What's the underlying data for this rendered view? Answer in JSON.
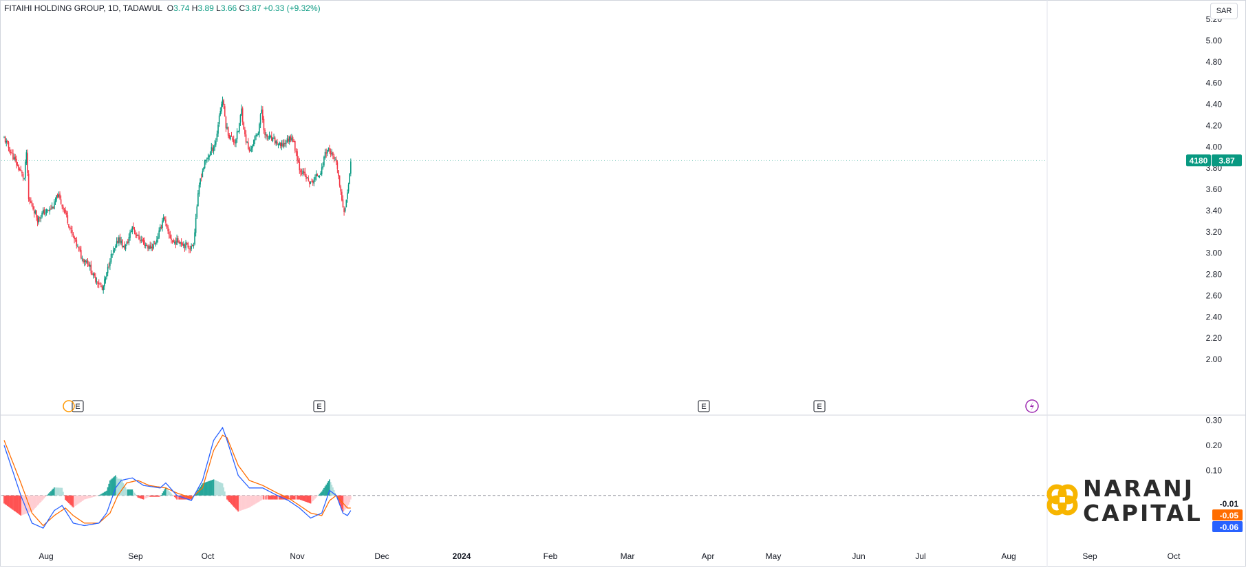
{
  "header": {
    "symbol": "FITAIHI HOLDING GROUP, 1D, TADAWUL",
    "o_label": "O",
    "o_value": "3.74",
    "h_label": "H",
    "h_value": "3.89",
    "l_label": "L",
    "l_value": "3.66",
    "c_label": "C",
    "c_value": "3.87",
    "change": "+0.33 (+9.32%)"
  },
  "currency": "SAR",
  "price_tag": {
    "ticker": "4180",
    "price": "3.87"
  },
  "macd_tags": {
    "hist": "-0.01",
    "signal": "-0.05",
    "macd": "-0.06"
  },
  "logo": {
    "line1": "NARANJ",
    "line2": "CAPITAL"
  },
  "event_markers": [
    "E",
    "E",
    "E",
    "E"
  ],
  "colors": {
    "up": "#089981",
    "down": "#f23645",
    "macd": "#2962ff",
    "signal": "#ff6d00",
    "hist_up": "#26a69a",
    "hist_up_light": "#b2dfdb",
    "hist_down": "#ff5252",
    "hist_down_light": "#ffcdd2",
    "logo_accent": "#f7b500"
  },
  "chart_data": [
    {
      "type": "candlestick",
      "ylabel": "SAR",
      "ylim": [
        2.0,
        5.2
      ],
      "y_ticks": [
        "2.00",
        "2.20",
        "2.40",
        "2.60",
        "2.80",
        "3.00",
        "3.20",
        "3.40",
        "3.60",
        "3.80",
        "4.00",
        "4.20",
        "4.40",
        "4.60",
        "4.80",
        "5.00",
        "5.20"
      ],
      "x_ticks": [
        "Aug",
        "Sep",
        "Oct",
        "Nov",
        "Dec",
        "2024",
        "Feb",
        "Mar",
        "Apr",
        "May",
        "Jun",
        "Jul",
        "Aug",
        "Sep",
        "Oct"
      ],
      "close_path": [
        [
          0,
          4.08
        ],
        [
          6,
          3.95
        ],
        [
          12,
          3.82
        ],
        [
          18,
          3.7
        ],
        [
          20,
          3.95
        ],
        [
          22,
          3.5
        ],
        [
          25,
          3.45
        ],
        [
          30,
          3.32
        ],
        [
          35,
          3.38
        ],
        [
          40,
          3.4
        ],
        [
          45,
          3.45
        ],
        [
          48,
          3.55
        ],
        [
          52,
          3.45
        ],
        [
          55,
          3.38
        ],
        [
          60,
          3.2
        ],
        [
          65,
          3.08
        ],
        [
          70,
          2.95
        ],
        [
          75,
          2.92
        ],
        [
          80,
          2.78
        ],
        [
          85,
          2.72
        ],
        [
          88,
          2.65
        ],
        [
          92,
          2.8
        ],
        [
          95,
          2.95
        ],
        [
          100,
          3.05
        ],
        [
          103,
          3.15
        ],
        [
          107,
          3.05
        ],
        [
          110,
          3.08
        ],
        [
          115,
          3.25
        ],
        [
          120,
          3.15
        ],
        [
          125,
          3.1
        ],
        [
          130,
          3.05
        ],
        [
          135,
          3.08
        ],
        [
          140,
          3.22
        ],
        [
          143,
          3.35
        ],
        [
          147,
          3.18
        ],
        [
          152,
          3.1
        ],
        [
          157,
          3.12
        ],
        [
          162,
          3.08
        ],
        [
          168,
          3.05
        ],
        [
          170,
          3.1
        ],
        [
          173,
          3.45
        ],
        [
          176,
          3.7
        ],
        [
          180,
          3.85
        ],
        [
          185,
          3.95
        ],
        [
          190,
          4.05
        ],
        [
          193,
          4.3
        ],
        [
          196,
          4.45
        ],
        [
          199,
          4.2
        ],
        [
          202,
          4.1
        ],
        [
          207,
          4.05
        ],
        [
          210,
          4.15
        ],
        [
          213,
          4.35
        ],
        [
          216,
          4.1
        ],
        [
          220,
          3.95
        ],
        [
          224,
          4.05
        ],
        [
          228,
          4.15
        ],
        [
          231,
          4.35
        ],
        [
          234,
          4.1
        ],
        [
          238,
          4.08
        ],
        [
          243,
          4.05
        ],
        [
          248,
          4.0
        ],
        [
          253,
          4.05
        ],
        [
          258,
          4.1
        ],
        [
          262,
          3.95
        ],
        [
          265,
          3.8
        ],
        [
          270,
          3.72
        ],
        [
          275,
          3.65
        ],
        [
          280,
          3.72
        ],
        [
          285,
          3.78
        ],
        [
          288,
          3.95
        ],
        [
          291,
          3.98
        ],
        [
          295,
          3.9
        ],
        [
          299,
          3.8
        ],
        [
          302,
          3.55
        ],
        [
          305,
          3.4
        ],
        [
          308,
          3.55
        ],
        [
          311,
          3.87
        ]
      ],
      "events": [
        {
          "label": "E",
          "x": "Aug"
        },
        {
          "label": "E",
          "x": "Nov"
        },
        {
          "label": "E",
          "x": "Apr"
        },
        {
          "label": "E",
          "x": "May"
        }
      ]
    },
    {
      "type": "line",
      "ylim": [
        -0.22,
        0.32
      ],
      "y_ticks": [
        "0.30",
        "0.20",
        "0.10"
      ],
      "series_macd": [
        [
          0,
          0.2
        ],
        [
          15,
          0.0
        ],
        [
          25,
          -0.11
        ],
        [
          35,
          -0.13
        ],
        [
          45,
          -0.06
        ],
        [
          52,
          -0.04
        ],
        [
          62,
          -0.11
        ],
        [
          72,
          -0.12
        ],
        [
          85,
          -0.11
        ],
        [
          92,
          -0.07
        ],
        [
          100,
          0.03
        ],
        [
          105,
          0.06
        ],
        [
          115,
          0.07
        ],
        [
          125,
          0.04
        ],
        [
          140,
          0.03
        ],
        [
          145,
          0.05
        ],
        [
          155,
          0.0
        ],
        [
          168,
          -0.02
        ],
        [
          178,
          0.06
        ],
        [
          188,
          0.22
        ],
        [
          196,
          0.27
        ],
        [
          200,
          0.22
        ],
        [
          210,
          0.08
        ],
        [
          220,
          0.03
        ],
        [
          232,
          0.03
        ],
        [
          245,
          0.0
        ],
        [
          255,
          -0.02
        ],
        [
          265,
          -0.05
        ],
        [
          275,
          -0.09
        ],
        [
          285,
          -0.07
        ],
        [
          292,
          0.02
        ],
        [
          298,
          0.0
        ],
        [
          304,
          -0.07
        ],
        [
          308,
          -0.08
        ],
        [
          311,
          -0.06
        ]
      ],
      "series_signal": [
        [
          0,
          0.22
        ],
        [
          15,
          0.05
        ],
        [
          25,
          -0.07
        ],
        [
          35,
          -0.12
        ],
        [
          45,
          -0.08
        ],
        [
          55,
          -0.05
        ],
        [
          62,
          -0.08
        ],
        [
          72,
          -0.11
        ],
        [
          85,
          -0.11
        ],
        [
          95,
          -0.07
        ],
        [
          102,
          0.0
        ],
        [
          110,
          0.05
        ],
        [
          120,
          0.06
        ],
        [
          130,
          0.04
        ],
        [
          145,
          0.03
        ],
        [
          155,
          0.01
        ],
        [
          168,
          -0.01
        ],
        [
          178,
          0.03
        ],
        [
          188,
          0.18
        ],
        [
          196,
          0.24
        ],
        [
          200,
          0.23
        ],
        [
          210,
          0.12
        ],
        [
          220,
          0.06
        ],
        [
          232,
          0.04
        ],
        [
          245,
          0.01
        ],
        [
          255,
          -0.01
        ],
        [
          265,
          -0.04
        ],
        [
          275,
          -0.07
        ],
        [
          285,
          -0.08
        ],
        [
          292,
          -0.02
        ],
        [
          298,
          0.0
        ],
        [
          304,
          -0.03
        ],
        [
          308,
          -0.05
        ],
        [
          311,
          -0.05
        ]
      ]
    }
  ]
}
